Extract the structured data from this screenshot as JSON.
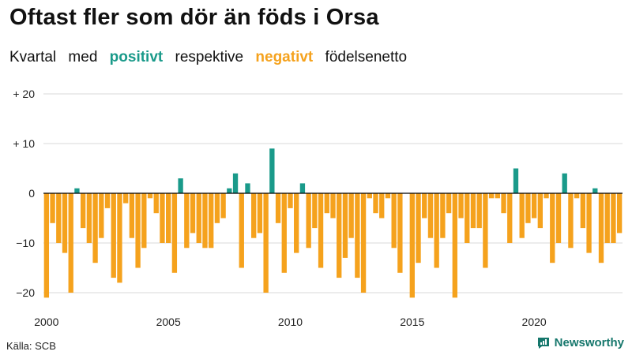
{
  "title": "Oftast fler som dör än föds i Orsa",
  "subtitle": {
    "w1": "Kvartal",
    "w2": "med",
    "positive": "positivt",
    "w3": "respektive",
    "negative": "negativt",
    "w4": "födelsenetto"
  },
  "source": "Källa: SCB",
  "brand": "Newsworthy",
  "colors": {
    "positive": "#1a9a8a",
    "negative": "#f5a21d",
    "grid": "#d8d8d8",
    "axis": "#000000"
  },
  "chart_data": {
    "type": "bar",
    "x_start": 2000,
    "periods_per_year": 4,
    "ylim": [
      -22,
      22
    ],
    "yticks": [
      {
        "value": 20,
        "label": "+ 20"
      },
      {
        "value": 10,
        "label": "+ 10"
      },
      {
        "value": 0,
        "label": "0"
      },
      {
        "value": -10,
        "label": "−10"
      },
      {
        "value": -20,
        "label": "−20"
      }
    ],
    "xticks": [
      "2000",
      "2005",
      "2010",
      "2015",
      "2020"
    ],
    "values": [
      -21,
      -6,
      -10,
      -12,
      -20,
      1,
      -7,
      -10,
      -14,
      -9,
      -3,
      -17,
      -18,
      -2,
      -9,
      -15,
      -11,
      -1,
      -4,
      -10,
      -10,
      -16,
      3,
      -11,
      -8,
      -10,
      -11,
      -11,
      -6,
      -5,
      1,
      4,
      -15,
      2,
      -9,
      -8,
      -20,
      9,
      -6,
      -16,
      -3,
      -12,
      2,
      -11,
      -7,
      -15,
      -4,
      -5,
      -17,
      -13,
      -9,
      -17,
      -20,
      -1,
      -4,
      -5,
      -1,
      -11,
      -16,
      0,
      -21,
      -14,
      -5,
      -9,
      -15,
      -9,
      -4,
      -21,
      -5,
      -10,
      -7,
      -7,
      -15,
      -1,
      -1,
      -4,
      -10,
      5,
      -9,
      -6,
      -5,
      -7,
      -1,
      -14,
      -10,
      4,
      -11,
      -1,
      -7,
      -12,
      1,
      -14,
      -10,
      -10,
      -8
    ]
  }
}
